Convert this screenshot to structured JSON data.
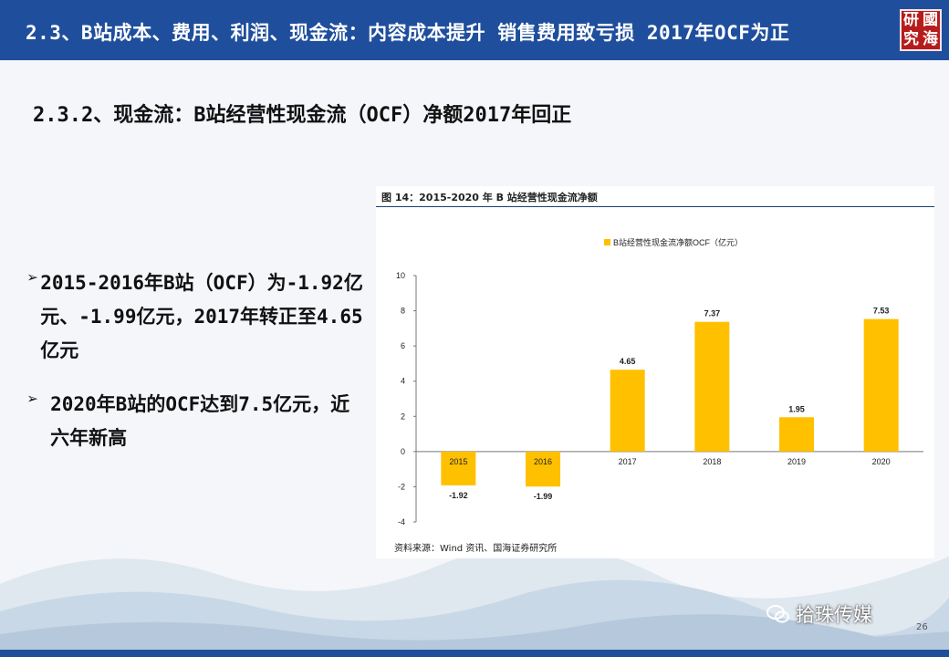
{
  "header": {
    "title": "2.3、B站成本、费用、利润、现金流：内容成本提升 销售费用致亏损  2017年OCF为正",
    "logo_chars": [
      "研",
      "國",
      "究",
      "海"
    ]
  },
  "subtitle": "2.3.2、现金流：B站经营性现金流（OCF）净额2017年回正",
  "bullets": [
    {
      "mark": "➢",
      "text": "2015-2016年B站（OCF）为-1.92亿元、-1.99亿元，2017年转正至4.65亿元"
    },
    {
      "mark": "➢",
      "text": "2020年B站的OCF达到7.5亿元，近六年新高"
    }
  ],
  "figure": {
    "title": "图 14：2015-2020 年 B 站经营性现金流净额",
    "source": "资料来源：Wind 资讯、国海证券研究所"
  },
  "chart_data": {
    "type": "bar",
    "categories": [
      "2015",
      "2016",
      "2017",
      "2018",
      "2019",
      "2020"
    ],
    "series": [
      {
        "name": "B站经营性现金流净额OCF（亿元）",
        "values": [
          -1.92,
          -1.99,
          4.65,
          7.37,
          1.95,
          7.53
        ]
      }
    ],
    "data_labels": [
      "-1.92",
      "-1.99",
      "4.65",
      "7.37",
      "1.95",
      "7.53"
    ],
    "yticks": [
      "10",
      "8",
      "6",
      "4",
      "2",
      "0",
      "-2",
      "-4"
    ],
    "ylim": [
      -4,
      10
    ],
    "legend_position": "top",
    "grid": false,
    "colors": {
      "bar": "#FFC000"
    }
  },
  "watermark": {
    "text": "拾珠传媒",
    "icon": "wechat-icon"
  },
  "page_number": "26"
}
